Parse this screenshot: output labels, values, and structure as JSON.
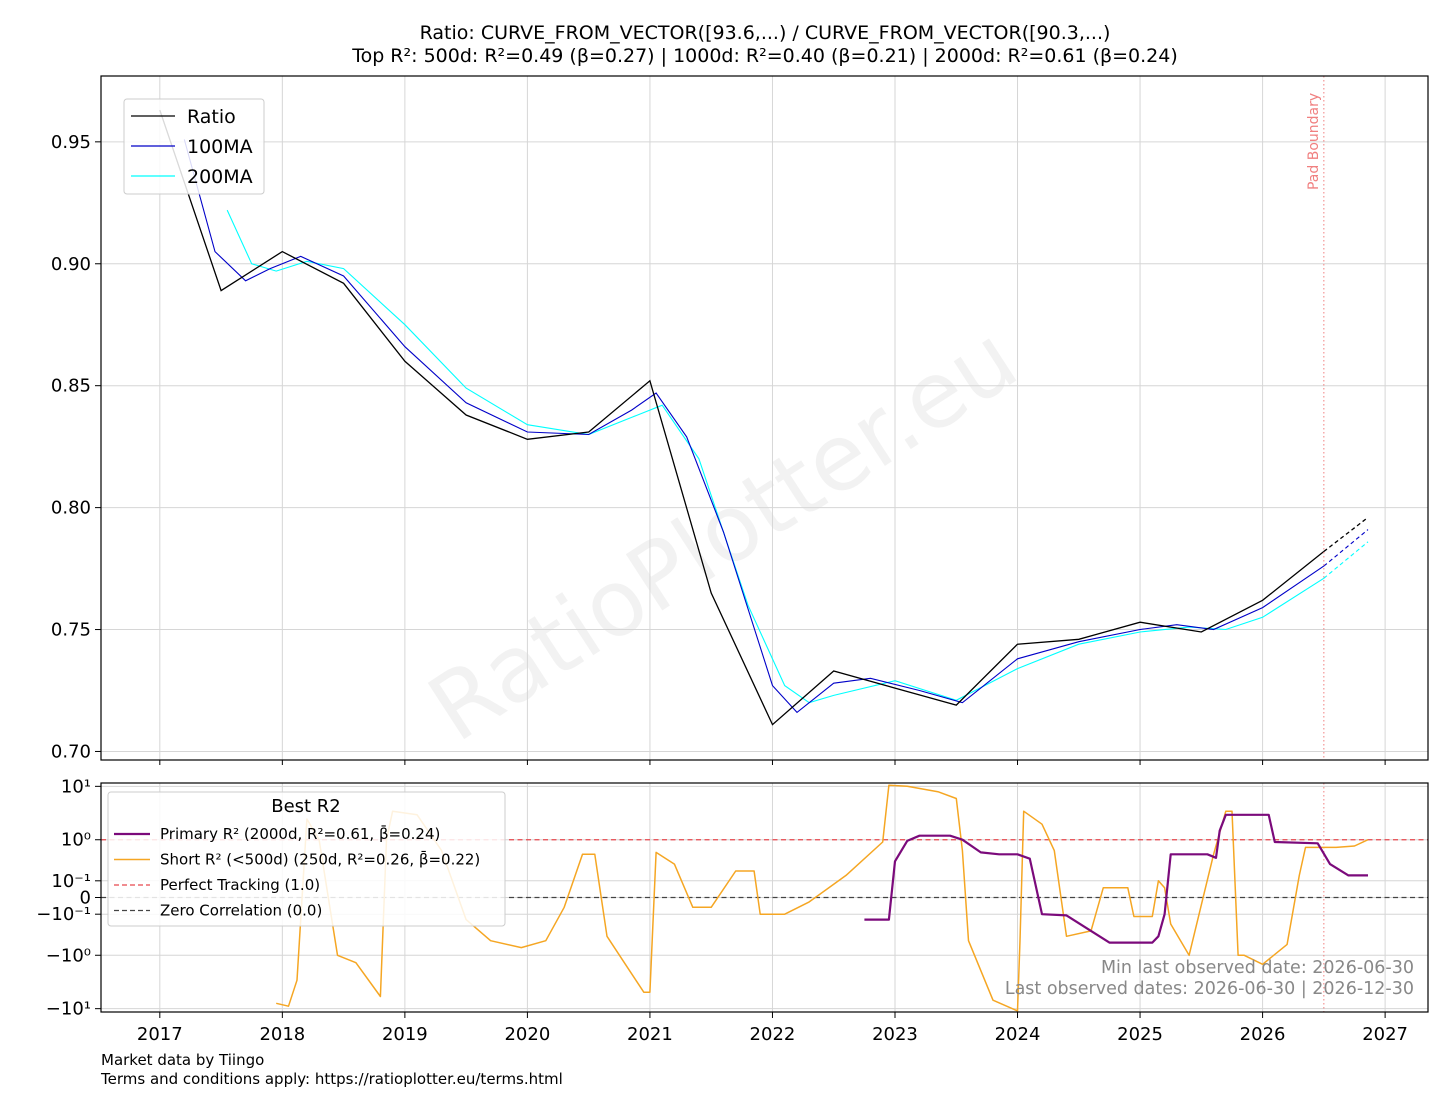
{
  "title_line1": "Ratio: CURVE_FROM_VECTOR([93.6,...) / CURVE_FROM_VECTOR([90.3,...)",
  "title_line2": "Top R²: 500d: R²=0.49 (β=0.27) | 1000d: R²=0.40 (β=0.21) | 2000d: R²=0.61 (β=0.24)",
  "watermark": "RatioPlotter.eu",
  "footer": {
    "line1": "Market data by Tiingo",
    "line2": "Terms and conditions apply: https://ratioplotter.eu/terms.html"
  },
  "chart_data": [
    {
      "type": "line",
      "xlim": [
        2016.52,
        2027.35
      ],
      "ylim": [
        0.6965,
        0.977
      ],
      "y_ticks": [
        "0.70",
        "0.75",
        "0.80",
        "0.85",
        "0.90",
        "0.95"
      ],
      "y_tick_values": [
        0.7,
        0.75,
        0.8,
        0.85,
        0.9,
        0.95
      ],
      "legend": {
        "position": "top-left",
        "entries": [
          "Ratio",
          "100MA",
          "200MA"
        ]
      },
      "pad_boundary": {
        "x": 2026.5,
        "label": "Pad Boundary",
        "color": "#f08080"
      },
      "grid": true,
      "series": [
        {
          "name": "Ratio",
          "color": "#000000",
          "x": [
            2017.0,
            2017.5,
            2018.0,
            2018.5,
            2019.0,
            2019.5,
            2020.0,
            2020.5,
            2021.0,
            2021.5,
            2022.0,
            2022.5,
            2023.0,
            2023.5,
            2024.0,
            2024.5,
            2025.0,
            2025.5,
            2026.0,
            2026.5
          ],
          "y": [
            0.963,
            0.889,
            0.905,
            0.892,
            0.86,
            0.838,
            0.828,
            0.831,
            0.852,
            0.765,
            0.711,
            0.733,
            0.726,
            0.719,
            0.744,
            0.746,
            0.753,
            0.749,
            0.762,
            0.782
          ],
          "projection": {
            "x": [
              2026.5,
              2026.86
            ],
            "y": [
              0.782,
              0.796
            ]
          }
        },
        {
          "name": "100MA",
          "color": "#0000c8",
          "x": [
            2017.2,
            2017.45,
            2017.7,
            2017.9,
            2018.15,
            2018.5,
            2019.0,
            2019.5,
            2020.0,
            2020.5,
            2020.85,
            2021.05,
            2021.3,
            2021.6,
            2022.0,
            2022.2,
            2022.5,
            2022.8,
            2023.2,
            2023.55,
            2024.0,
            2024.5,
            2025.0,
            2025.3,
            2025.6,
            2026.0,
            2026.5
          ],
          "y": [
            0.951,
            0.905,
            0.893,
            0.898,
            0.903,
            0.895,
            0.866,
            0.843,
            0.831,
            0.83,
            0.84,
            0.847,
            0.829,
            0.79,
            0.727,
            0.716,
            0.728,
            0.73,
            0.725,
            0.72,
            0.738,
            0.745,
            0.75,
            0.752,
            0.75,
            0.759,
            0.776
          ],
          "projection": {
            "x": [
              2026.5,
              2026.86
            ],
            "y": [
              0.776,
              0.791
            ]
          }
        },
        {
          "name": "200MA",
          "color": "#00ffff",
          "x": [
            2017.55,
            2017.75,
            2017.95,
            2018.2,
            2018.5,
            2019.0,
            2019.5,
            2020.0,
            2020.5,
            2020.85,
            2021.1,
            2021.4,
            2021.8,
            2022.1,
            2022.3,
            2022.5,
            2023.0,
            2023.5,
            2024.0,
            2024.5,
            2025.0,
            2025.4,
            2025.7,
            2026.0,
            2026.5
          ],
          "y": [
            0.922,
            0.9,
            0.897,
            0.901,
            0.898,
            0.875,
            0.849,
            0.834,
            0.83,
            0.837,
            0.842,
            0.82,
            0.76,
            0.727,
            0.72,
            0.723,
            0.729,
            0.721,
            0.734,
            0.744,
            0.749,
            0.751,
            0.75,
            0.755,
            0.771
          ],
          "projection": {
            "x": [
              2026.5,
              2026.86
            ],
            "y": [
              0.771,
              0.786
            ]
          }
        }
      ]
    },
    {
      "type": "line",
      "title": "Best R2",
      "yscale": "symlog",
      "ylim": [
        -11.5,
        11.5
      ],
      "y_ticks": [
        "10¹",
        "10⁰",
        "10⁻¹",
        "0",
        "−10⁻¹",
        "−10⁰",
        "−10¹"
      ],
      "y_tick_values": [
        10,
        1,
        0.1,
        0,
        -0.1,
        -1,
        -10
      ],
      "x_ticks": [
        "2017",
        "2018",
        "2019",
        "2020",
        "2021",
        "2022",
        "2023",
        "2024",
        "2025",
        "2026",
        "2027"
      ],
      "x_tick_values": [
        2017,
        2018,
        2019,
        2020,
        2021,
        2022,
        2023,
        2024,
        2025,
        2026,
        2027
      ],
      "legend": {
        "position": "top-left",
        "entries": [
          "Primary R² (2000d, R²=0.61, β̄=0.24)",
          "Short R² (<500d) (250d, R²=0.26, β̄=0.22)",
          "Perfect Tracking (1.0)",
          "Zero Correlation (0.0)"
        ]
      },
      "reference_lines": [
        {
          "name": "Perfect Tracking (1.0)",
          "y": 1.0,
          "color": "#e8474d",
          "style": "dashed"
        },
        {
          "name": "Zero Correlation (0.0)",
          "y": 0.0,
          "color": "#444444",
          "style": "dashed"
        }
      ],
      "annotations": [
        "Min last observed date: 2026-06-30",
        "Last observed dates: 2026-06-30 | 2026-12-30"
      ],
      "series": [
        {
          "name": "Primary R² (2000d, R²=0.61, β̄=0.24)",
          "color": "#7b0a7b",
          "x": [
            2022.75,
            2022.95,
            2023.0,
            2023.1,
            2023.2,
            2023.45,
            2023.55,
            2023.7,
            2023.85,
            2024.0,
            2024.1,
            2024.2,
            2024.4,
            2024.6,
            2024.75,
            2025.1,
            2025.15,
            2025.2,
            2025.25,
            2025.55,
            2025.62,
            2025.65,
            2025.7,
            2026.05,
            2026.1,
            2026.45,
            2026.55,
            2026.7,
            2026.86
          ],
          "y": [
            -0.15,
            -0.15,
            0.35,
            0.95,
            1.2,
            1.2,
            1.0,
            0.55,
            0.5,
            0.5,
            0.4,
            -0.1,
            -0.11,
            -0.3,
            -0.55,
            -0.55,
            -0.4,
            -0.1,
            0.5,
            0.5,
            0.42,
            1.5,
            3.0,
            3.0,
            0.9,
            0.85,
            0.3,
            0.15,
            0.15
          ]
        },
        {
          "name": "Short R² (<500d) (250d, R²=0.26, β̄=0.22)",
          "color": "#f5a623",
          "x": [
            2017.95,
            2018.05,
            2018.12,
            2018.2,
            2018.3,
            2018.45,
            2018.6,
            2018.8,
            2018.85,
            2018.9,
            2019.1,
            2019.3,
            2019.5,
            2019.7,
            2019.95,
            2020.15,
            2020.3,
            2020.45,
            2020.55,
            2020.65,
            2020.8,
            2020.95,
            2021.0,
            2021.05,
            2021.2,
            2021.35,
            2021.5,
            2021.7,
            2021.85,
            2021.9,
            2022.1,
            2022.3,
            2022.6,
            2022.9,
            2022.95,
            2023.1,
            2023.35,
            2023.5,
            2023.55,
            2023.6,
            2023.8,
            2024.0,
            2024.02,
            2024.05,
            2024.2,
            2024.3,
            2024.4,
            2024.6,
            2024.7,
            2024.9,
            2024.95,
            2025.1,
            2025.15,
            2025.2,
            2025.25,
            2025.4,
            2025.6,
            2025.7,
            2025.75,
            2025.8,
            2025.85,
            2026.0,
            2026.2,
            2026.3,
            2026.35,
            2026.45,
            2026.6,
            2026.75,
            2026.86
          ],
          "y": [
            -8,
            -9,
            -3,
            2.5,
            1.0,
            -1.0,
            -1.4,
            -6,
            1.0,
            3.5,
            3.0,
            0.6,
            -0.15,
            -0.5,
            -0.7,
            -0.5,
            -0.05,
            0.5,
            0.5,
            -0.4,
            -1.5,
            -5,
            -5,
            0.55,
            0.3,
            -0.05,
            -0.05,
            0.2,
            0.2,
            -0.1,
            -0.1,
            -0.02,
            0.15,
            0.9,
            10.5,
            10,
            8,
            6,
            0.6,
            -0.5,
            -7,
            -11,
            -0.5,
            3.5,
            2.0,
            0.6,
            -0.4,
            -0.3,
            0.05,
            0.05,
            -0.12,
            -0.12,
            0.1,
            0.05,
            -0.2,
            -1.0,
            0.5,
            3.5,
            3.5,
            -1.0,
            -1.0,
            -1.5,
            -0.6,
            0.15,
            0.7,
            0.7,
            0.7,
            0.75,
            1.0
          ]
        }
      ]
    }
  ]
}
